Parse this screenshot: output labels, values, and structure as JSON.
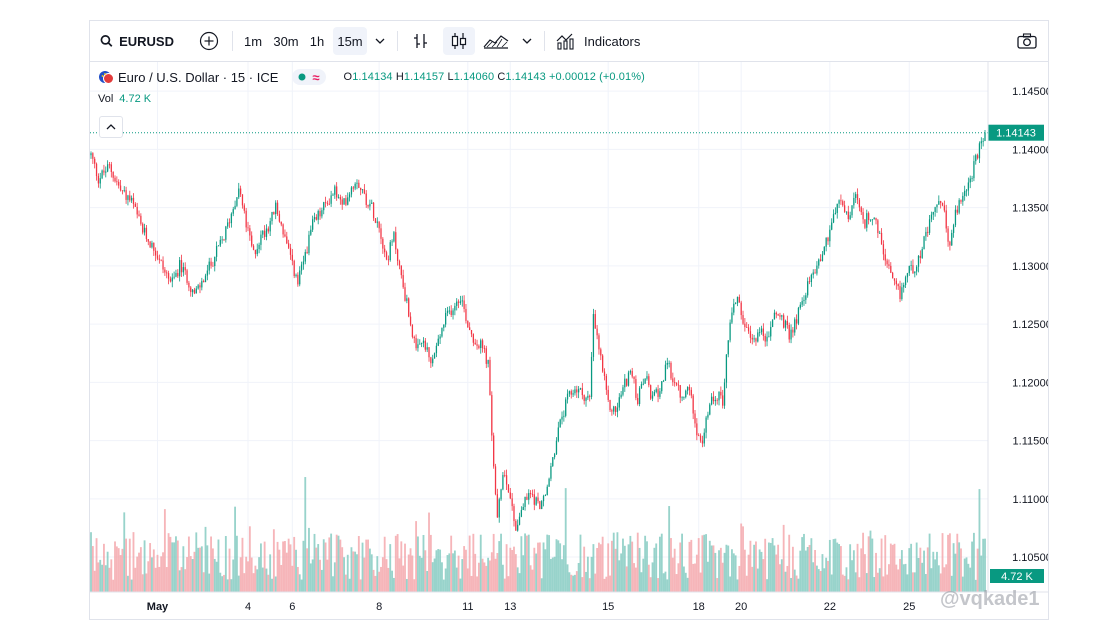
{
  "toolbar": {
    "symbol": "EURUSD",
    "intervals": [
      "1m",
      "30m",
      "1h",
      "15m"
    ],
    "active_interval": "15m",
    "indicators_label": "Indicators",
    "icons": [
      "search-icon",
      "add-compare-icon",
      "chevron-down-icon",
      "bar-chart-icon",
      "candlestick-icon",
      "area-chart-icon",
      "chevron-down-icon",
      "indicators-icon",
      "camera-icon"
    ]
  },
  "legend": {
    "title": "Euro / U.S. Dollar · 15 · ICE",
    "o_key": "O",
    "o_val": "1.14134",
    "h_key": "H",
    "h_val": "1.14157",
    "l_key": "L",
    "l_val": "1.14060",
    "c_key": "C",
    "c_val": "1.14143",
    "change": "+0.00012 (+0.01%)",
    "vol_key": "Vol",
    "vol_val": "4.72 K"
  },
  "price_axis": {
    "current_price_label": "1.14143",
    "current_volume_label": "4.72 K"
  },
  "watermark": "@vqkade1",
  "colors": {
    "up": "#089981",
    "down": "#f23645",
    "up_volume": "#7ec8be",
    "down_volume": "#f4a3a8",
    "grid": "#f0f3fa",
    "text": "#131722"
  },
  "chart_data": {
    "type": "candlestick",
    "symbol": "EURUSD",
    "interval": "15",
    "ylim": [
      1.102,
      1.1475
    ],
    "y_ticks": [
      "1.14500",
      "1.14000",
      "1.13500",
      "1.13000",
      "1.12500",
      "1.12000",
      "1.11500",
      "1.11000",
      "1.10500"
    ],
    "x_ticks": [
      "May",
      "4",
      "6",
      "8",
      "11",
      "13",
      "15",
      "18",
      "20",
      "22",
      "25"
    ],
    "last_price": 1.14143,
    "last_volume": "4.72 K",
    "grid": true,
    "price_path": [
      [
        0,
        1.1395
      ],
      [
        4,
        1.1375
      ],
      [
        10,
        1.1385
      ],
      [
        16,
        1.1365
      ],
      [
        22,
        1.1355
      ],
      [
        28,
        1.133
      ],
      [
        34,
        1.1315
      ],
      [
        40,
        1.1295
      ],
      [
        44,
        1.1285
      ],
      [
        48,
        1.13
      ],
      [
        52,
        1.129
      ],
      [
        56,
        1.1275
      ],
      [
        60,
        1.1285
      ],
      [
        66,
        1.1305
      ],
      [
        72,
        1.1325
      ],
      [
        76,
        1.1345
      ],
      [
        80,
        1.1368
      ],
      [
        84,
        1.1335
      ],
      [
        88,
        1.131
      ],
      [
        92,
        1.1325
      ],
      [
        96,
        1.1335
      ],
      [
        100,
        1.135
      ],
      [
        104,
        1.133
      ],
      [
        108,
        1.1305
      ],
      [
        112,
        1.1285
      ],
      [
        116,
        1.131
      ],
      [
        120,
        1.1335
      ],
      [
        124,
        1.1345
      ],
      [
        128,
        1.1355
      ],
      [
        132,
        1.1365
      ],
      [
        136,
        1.135
      ],
      [
        140,
        1.1365
      ],
      [
        144,
        1.1375
      ],
      [
        148,
        1.136
      ],
      [
        152,
        1.135
      ],
      [
        156,
        1.1335
      ],
      [
        160,
        1.1305
      ],
      [
        164,
        1.1325
      ],
      [
        168,
        1.129
      ],
      [
        172,
        1.126
      ],
      [
        176,
        1.1225
      ],
      [
        180,
        1.1235
      ],
      [
        184,
        1.1215
      ],
      [
        188,
        1.1235
      ],
      [
        192,
        1.1255
      ],
      [
        196,
        1.1265
      ],
      [
        200,
        1.1275
      ],
      [
        204,
        1.125
      ],
      [
        208,
        1.1235
      ],
      [
        212,
        1.123
      ],
      [
        215,
        1.1215
      ],
      [
        217,
        1.1155
      ],
      [
        220,
        1.108
      ],
      [
        223,
        1.1125
      ],
      [
        226,
        1.111
      ],
      [
        230,
        1.1075
      ],
      [
        234,
        1.1095
      ],
      [
        238,
        1.1105
      ],
      [
        242,
        1.1095
      ],
      [
        246,
        1.11
      ],
      [
        250,
        1.1135
      ],
      [
        254,
        1.1165
      ],
      [
        258,
        1.1185
      ],
      [
        262,
        1.1195
      ],
      [
        266,
        1.119
      ],
      [
        270,
        1.1185
      ],
      [
        272,
        1.1255
      ],
      [
        276,
        1.122
      ],
      [
        280,
        1.118
      ],
      [
        284,
        1.1175
      ],
      [
        288,
        1.1195
      ],
      [
        292,
        1.121
      ],
      [
        296,
        1.1185
      ],
      [
        300,
        1.1205
      ],
      [
        304,
        1.1185
      ],
      [
        308,
        1.1195
      ],
      [
        312,
        1.1215
      ],
      [
        316,
        1.12
      ],
      [
        320,
        1.1185
      ],
      [
        324,
        1.1195
      ],
      [
        328,
        1.116
      ],
      [
        331,
        1.1145
      ],
      [
        334,
        1.1175
      ],
      [
        338,
        1.119
      ],
      [
        342,
        1.1185
      ],
      [
        346,
        1.1255
      ],
      [
        350,
        1.1275
      ],
      [
        354,
        1.1245
      ],
      [
        358,
        1.1235
      ],
      [
        362,
        1.1245
      ],
      [
        366,
        1.1235
      ],
      [
        370,
        1.126
      ],
      [
        374,
        1.1255
      ],
      [
        378,
        1.124
      ],
      [
        382,
        1.1255
      ],
      [
        386,
        1.1275
      ],
      [
        390,
        1.129
      ],
      [
        394,
        1.1305
      ],
      [
        398,
        1.132
      ],
      [
        402,
        1.1345
      ],
      [
        406,
        1.1355
      ],
      [
        410,
        1.134
      ],
      [
        414,
        1.136
      ],
      [
        418,
        1.1335
      ],
      [
        422,
        1.1345
      ],
      [
        426,
        1.133
      ],
      [
        430,
        1.1305
      ],
      [
        434,
        1.1285
      ],
      [
        438,
        1.1275
      ],
      [
        442,
        1.1295
      ],
      [
        446,
        1.13
      ],
      [
        450,
        1.1315
      ],
      [
        454,
        1.1335
      ],
      [
        458,
        1.1355
      ],
      [
        462,
        1.1345
      ],
      [
        465,
        1.1315
      ],
      [
        468,
        1.1345
      ],
      [
        472,
        1.136
      ],
      [
        476,
        1.1375
      ],
      [
        480,
        1.1395
      ],
      [
        484,
        1.1414
      ]
    ]
  }
}
